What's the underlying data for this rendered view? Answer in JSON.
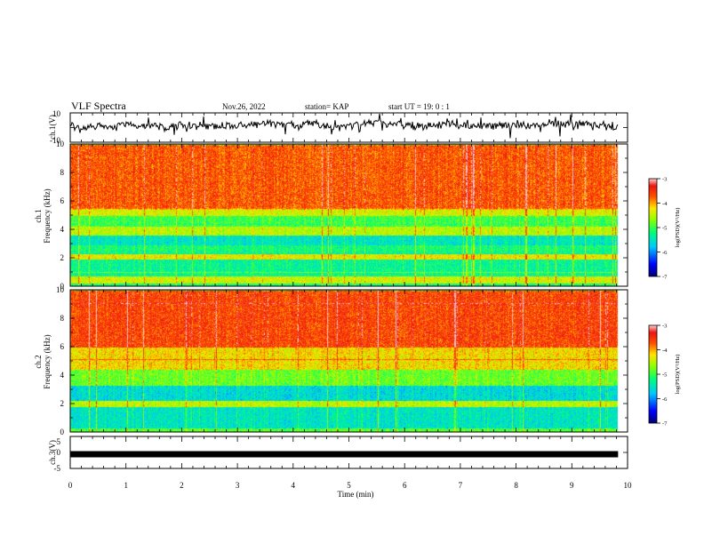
{
  "header": {
    "title": "VLF Spectra",
    "date": "Nov.26, 2022",
    "station": "station= KAP",
    "start": "start  UT =   19: 0  : 1"
  },
  "chart_data": [
    {
      "type": "line",
      "panel": "waveform-ch1",
      "ylabel": "ch.1(V)",
      "ylim": [
        -10,
        10
      ],
      "yticks": [
        10,
        -10
      ],
      "xlim": [
        0,
        10
      ],
      "xmax_data": 9.83,
      "trace_center": 1.5,
      "trace_amplitude": 3.5
    },
    {
      "type": "heatmap",
      "panel": "spectrogram-ch1",
      "ylabel": "ch.1 Frequency (kHz)",
      "ylim": [
        0,
        10
      ],
      "yticks": [
        0,
        2,
        4,
        6,
        8,
        10
      ],
      "xlim": [
        0,
        10
      ],
      "xmax_data": 9.83,
      "colorbar": {
        "label": "log(PSD)(V²/Hz)",
        "range": [
          -7,
          -3
        ],
        "ticks": [
          -3,
          -4,
          -5,
          -6,
          -7
        ]
      },
      "bands_kHz": [
        {
          "from": 0.0,
          "to": 0.25,
          "level": -5.2
        },
        {
          "from": 0.25,
          "to": 0.7,
          "level": -4.4
        },
        {
          "from": 0.7,
          "to": 1.9,
          "level": -5.3
        },
        {
          "from": 1.9,
          "to": 2.3,
          "level": -4.3
        },
        {
          "from": 2.3,
          "to": 2.9,
          "level": -5.2
        },
        {
          "from": 2.9,
          "to": 3.6,
          "level": -5.5
        },
        {
          "from": 3.6,
          "to": 4.2,
          "level": -4.5
        },
        {
          "from": 4.2,
          "to": 5.0,
          "level": -5.0
        },
        {
          "from": 5.0,
          "to": 5.5,
          "level": -4.4
        },
        {
          "from": 5.5,
          "to": 10.0,
          "level": -3.7
        }
      ]
    },
    {
      "type": "heatmap",
      "panel": "spectrogram-ch2",
      "ylabel": "ch.2 Frequency (kHz)",
      "ylim": [
        0,
        10
      ],
      "yticks": [
        0,
        2,
        4,
        6,
        8,
        10
      ],
      "xlim": [
        0,
        10
      ],
      "xmax_data": 9.83,
      "colorbar": {
        "label": "log(PSD)(V²/Hz)",
        "range": [
          -7,
          -3
        ],
        "ticks": [
          -3,
          -4,
          -5,
          -6,
          -7
        ]
      },
      "bands_kHz": [
        {
          "from": 0.0,
          "to": 0.3,
          "level": -4.9
        },
        {
          "from": 0.3,
          "to": 1.8,
          "level": -5.5
        },
        {
          "from": 1.8,
          "to": 2.2,
          "level": -4.5
        },
        {
          "from": 2.2,
          "to": 3.3,
          "level": -5.6
        },
        {
          "from": 3.3,
          "to": 4.4,
          "level": -4.8
        },
        {
          "from": 4.4,
          "to": 6.0,
          "level": -4.2
        },
        {
          "from": 6.0,
          "to": 10.0,
          "level": -3.6
        }
      ]
    },
    {
      "type": "line",
      "panel": "waveform-ch3",
      "ylabel": "ch.3(V)",
      "ylim": [
        -5,
        5
      ],
      "yticks": [
        5,
        0,
        -5
      ],
      "xlim": [
        0,
        10
      ],
      "xmax_data": 9.83,
      "trace_center": 0,
      "trace_amplitude": 0.6,
      "xlabel": "Time (min)",
      "xticks": [
        "0",
        "1",
        "2",
        "3",
        "4",
        "5",
        "6",
        "7",
        "8",
        "9",
        "10"
      ]
    }
  ],
  "colors": {
    "axis": "#000000",
    "trace": "#000000",
    "background": "#ffffff"
  }
}
